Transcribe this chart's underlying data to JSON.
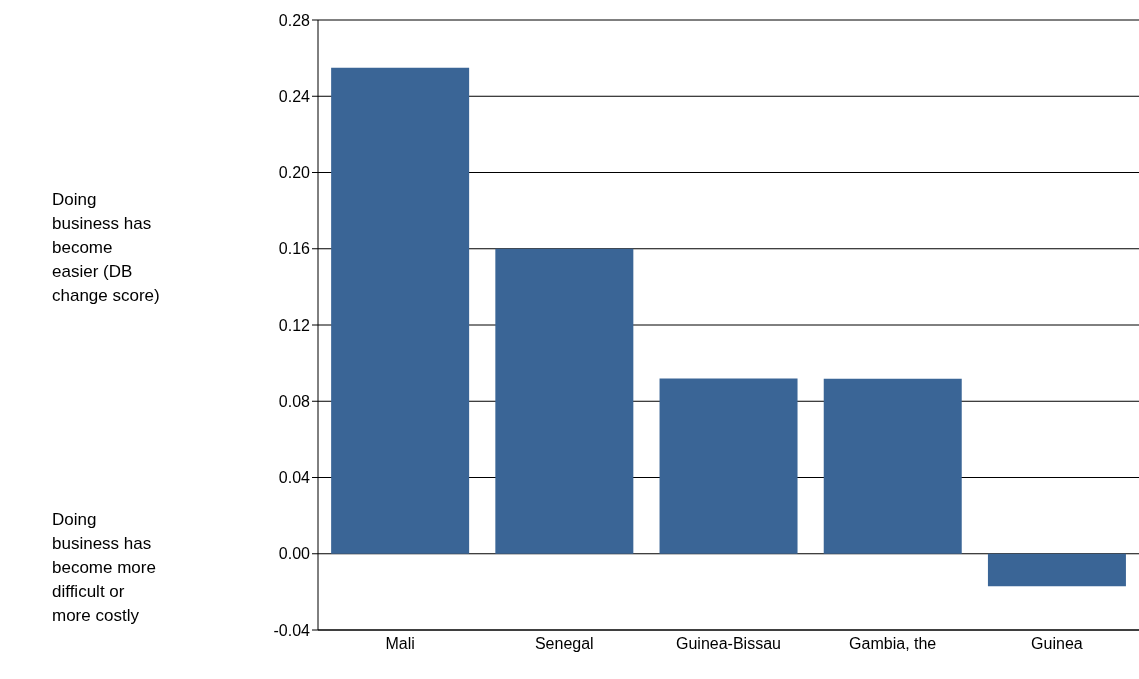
{
  "chart_data": {
    "type": "bar",
    "categories": [
      "Mali",
      "Senegal",
      "Guinea-Bissau",
      "Gambia, the",
      "Guinea"
    ],
    "values": [
      0.255,
      0.16,
      0.092,
      0.0918,
      -0.017
    ],
    "color": "#3a6596",
    "ylim": [
      -0.04,
      0.28
    ],
    "yticks": [
      {
        "value": -0.04,
        "label": "-0.04"
      },
      {
        "value": 0,
        "label": "0.00"
      },
      {
        "value": 0.04,
        "label": "0.04"
      },
      {
        "value": 0.08,
        "label": "0.08"
      },
      {
        "value": 0.12,
        "label": "0.12"
      },
      {
        "value": 0.16,
        "label": "0.16"
      },
      {
        "value": 0.2,
        "label": "0.20"
      },
      {
        "value": 0.24,
        "label": "0.24"
      },
      {
        "value": 0.28,
        "label": "0.28"
      }
    ],
    "grid": "y",
    "annotations": [
      "Doing business has become easier (DB change score)",
      "Doing business has become more difficult or more costly"
    ]
  }
}
